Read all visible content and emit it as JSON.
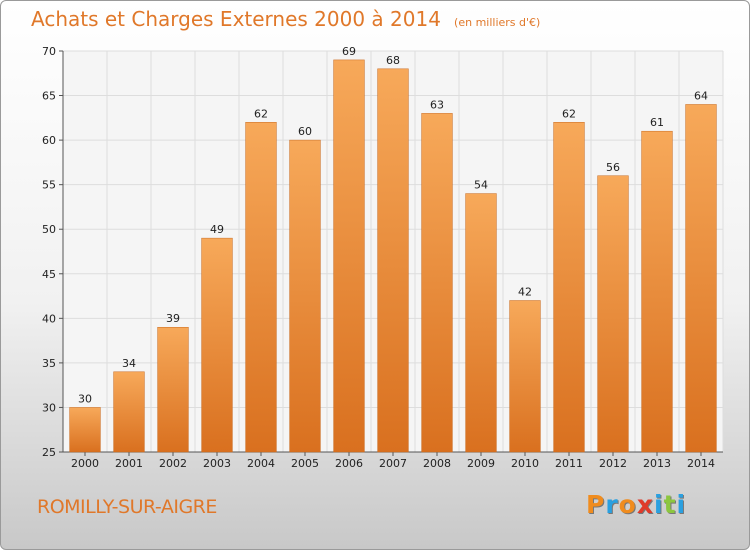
{
  "chart_data": {
    "type": "bar",
    "title": "Achats et Charges Externes 2000 à 2014",
    "unit_note": "(en milliers d'€)",
    "categories": [
      "2000",
      "2001",
      "2002",
      "2003",
      "2004",
      "2005",
      "2006",
      "2007",
      "2008",
      "2009",
      "2010",
      "2011",
      "2012",
      "2013",
      "2014"
    ],
    "values": [
      30,
      34,
      39,
      49,
      62,
      60,
      69,
      68,
      63,
      54,
      42,
      62,
      56,
      61,
      64
    ],
    "ylim": [
      25,
      70
    ],
    "yticks": [
      25,
      30,
      35,
      40,
      45,
      50,
      55,
      60,
      65,
      70
    ],
    "grid": true,
    "bar_color": "#f0a050",
    "title_color": "#e0782a"
  },
  "footer": {
    "city": "ROMILLY-SUR-AIGRE",
    "logo_text": "Proxiti",
    "logo_colors": [
      "#f08c1e",
      "#2aa0e0",
      "#f08c1e",
      "#e03a2a",
      "#2aa0e0",
      "#8cc63f",
      "#2aa0e0"
    ]
  }
}
